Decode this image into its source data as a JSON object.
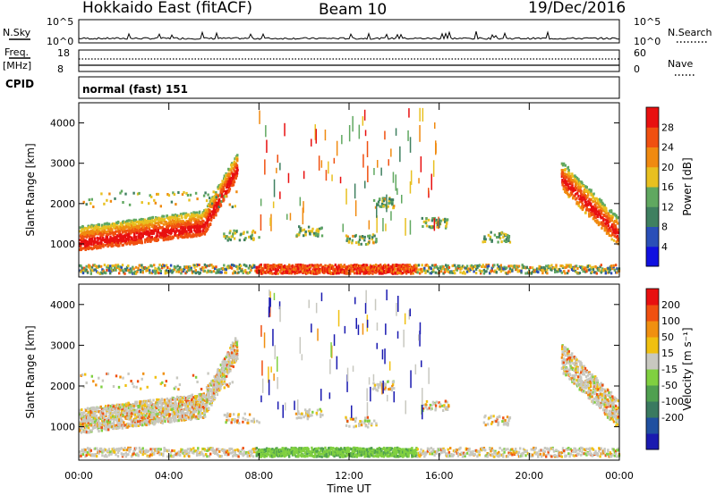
{
  "header": {
    "station": "Hokkaido East (fitACF)",
    "beam": "Beam 10",
    "date": "19/Dec/2016"
  },
  "strips": {
    "nsky_label": "N.Sky",
    "nsky_ticks": [
      "10^5",
      "10^0"
    ],
    "nsearch_label": "N.Search",
    "nsearch_ticks": [
      "10^5",
      "10^0"
    ],
    "freq_label": "Freq.",
    "freq_unit": "[MHz]",
    "freq_ticks": [
      "18",
      "8"
    ],
    "nave_label": "Nave",
    "nave_ticks": [
      "60",
      "0"
    ],
    "cpid_label": "CPID",
    "cpid_value": "normal (fast) 151"
  },
  "chart_data": [
    {
      "type": "heatmap",
      "quantity": "Power",
      "ylabel": "Slant Range [km]",
      "colorbar_label": "Power [dB]",
      "ylim": [
        180,
        4500
      ],
      "yticks": [
        1000,
        2000,
        3000,
        4000
      ],
      "colorbar_ticks": [
        4,
        8,
        12,
        16,
        20,
        24,
        28
      ],
      "colors": [
        "#1010e0",
        "#2a4fb8",
        "#3f8060",
        "#60a860",
        "#e8c020",
        "#f08a10",
        "#f05010",
        "#e81010"
      ]
    },
    {
      "type": "heatmap",
      "quantity": "Velocity",
      "ylabel": "Slant Range [km]",
      "colorbar_label": "Velocity [m s⁻¹]",
      "ylim": [
        180,
        4500
      ],
      "yticks": [
        1000,
        2000,
        3000,
        4000
      ],
      "colorbar_ticks": [
        "200",
        "100",
        "50",
        "15",
        "-15",
        "-50",
        "-100",
        "-200"
      ],
      "colors": [
        "#1a1ab0",
        "#2050a0",
        "#3a7a60",
        "#50a050",
        "#80d040",
        "#c8c8c0",
        "#f0c010",
        "#f09010",
        "#f05010",
        "#e81010"
      ]
    }
  ],
  "time_axis": {
    "xlabel": "Time UT",
    "ticks": [
      "00:00",
      "04:00",
      "08:00",
      "12:00",
      "16:00",
      "20:00",
      "00:00"
    ]
  }
}
